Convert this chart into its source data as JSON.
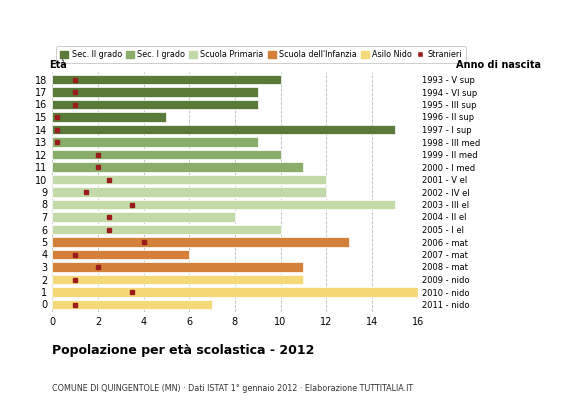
{
  "ages": [
    18,
    17,
    16,
    15,
    14,
    13,
    12,
    11,
    10,
    9,
    8,
    7,
    6,
    5,
    4,
    3,
    2,
    1,
    0
  ],
  "years": [
    "1993 - V sup",
    "1994 - VI sup",
    "1995 - III sup",
    "1996 - II sup",
    "1997 - I sup",
    "1998 - III med",
    "1999 - II med",
    "2000 - I med",
    "2001 - V el",
    "2002 - IV el",
    "2003 - III el",
    "2004 - II el",
    "2005 - I el",
    "2006 - mat",
    "2007 - mat",
    "2008 - mat",
    "2009 - nido",
    "2010 - nido",
    "2011 - nido"
  ],
  "bar_values": [
    10,
    9,
    9,
    5,
    15,
    9,
    10,
    11,
    12,
    12,
    15,
    8,
    10,
    13,
    6,
    11,
    11,
    16,
    7
  ],
  "stranieri": [
    1,
    1,
    1,
    0.2,
    0.2,
    0.2,
    2,
    2,
    2.5,
    1.5,
    3.5,
    2.5,
    2.5,
    4,
    1,
    2,
    1,
    3.5,
    1
  ],
  "colors_by_age": {
    "18": "#5a7a3a",
    "17": "#5a7a3a",
    "16": "#5a7a3a",
    "15": "#5a7a3a",
    "14": "#5a7a3a",
    "13": "#8aad6a",
    "12": "#8aad6a",
    "11": "#8aad6a",
    "10": "#c2d9a8",
    "9": "#c2d9a8",
    "8": "#c2d9a8",
    "7": "#c2d9a8",
    "6": "#c2d9a8",
    "5": "#d2803a",
    "4": "#d2803a",
    "3": "#d2803a",
    "2": "#f5d878",
    "1": "#f5d878",
    "0": "#f5d878"
  },
  "stranieri_color": "#9b1c1c",
  "title": "Popolazione per età scolastica - 2012",
  "subtitle": "COMUNE DI QUINGENTOLE (MN) · Dati ISTAT 1° gennaio 2012 · Elaborazione TUTTITALIA.IT",
  "eta_label": "Età",
  "anno_label": "Anno di nascita",
  "xlim": [
    0,
    16
  ],
  "xticks": [
    0,
    2,
    4,
    6,
    8,
    10,
    12,
    14,
    16
  ],
  "legend_labels": [
    "Sec. II grado",
    "Sec. I grado",
    "Scuola Primaria",
    "Scuola dell'Infanzia",
    "Asilo Nido",
    "Stranieri"
  ],
  "legend_colors": [
    "#5a7a3a",
    "#8aad6a",
    "#c2d9a8",
    "#d2803a",
    "#f5d878",
    "#9b1c1c"
  ],
  "background_color": "#ffffff",
  "grid_color": "#bbbbbb"
}
